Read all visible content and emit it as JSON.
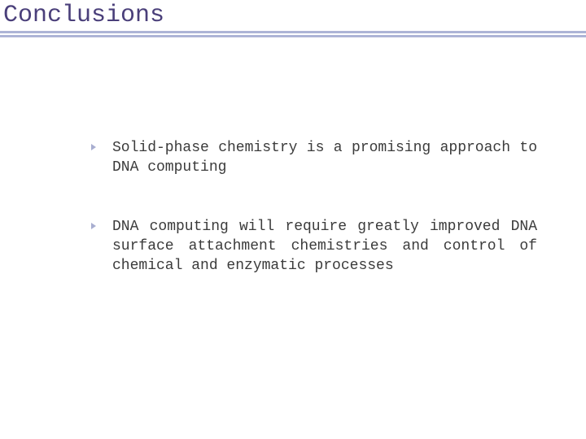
{
  "slide": {
    "title": "Conclusions",
    "title_color": "#4a3f7a",
    "title_fontsize": 30,
    "bar_color": "#adb4d6",
    "background_color": "#ffffff",
    "bullets": [
      {
        "text": "Solid-phase chemistry is a promising approach to DNA computing"
      },
      {
        "text": "DNA computing will require greatly improved DNA surface attachment chemistries and control of chemical and enzymatic processes"
      }
    ],
    "bullet_text_color": "#3b3b3b",
    "bullet_fontsize": 18,
    "bullet_marker_color": "#a8aed0",
    "bullet_marker_size": 8
  }
}
